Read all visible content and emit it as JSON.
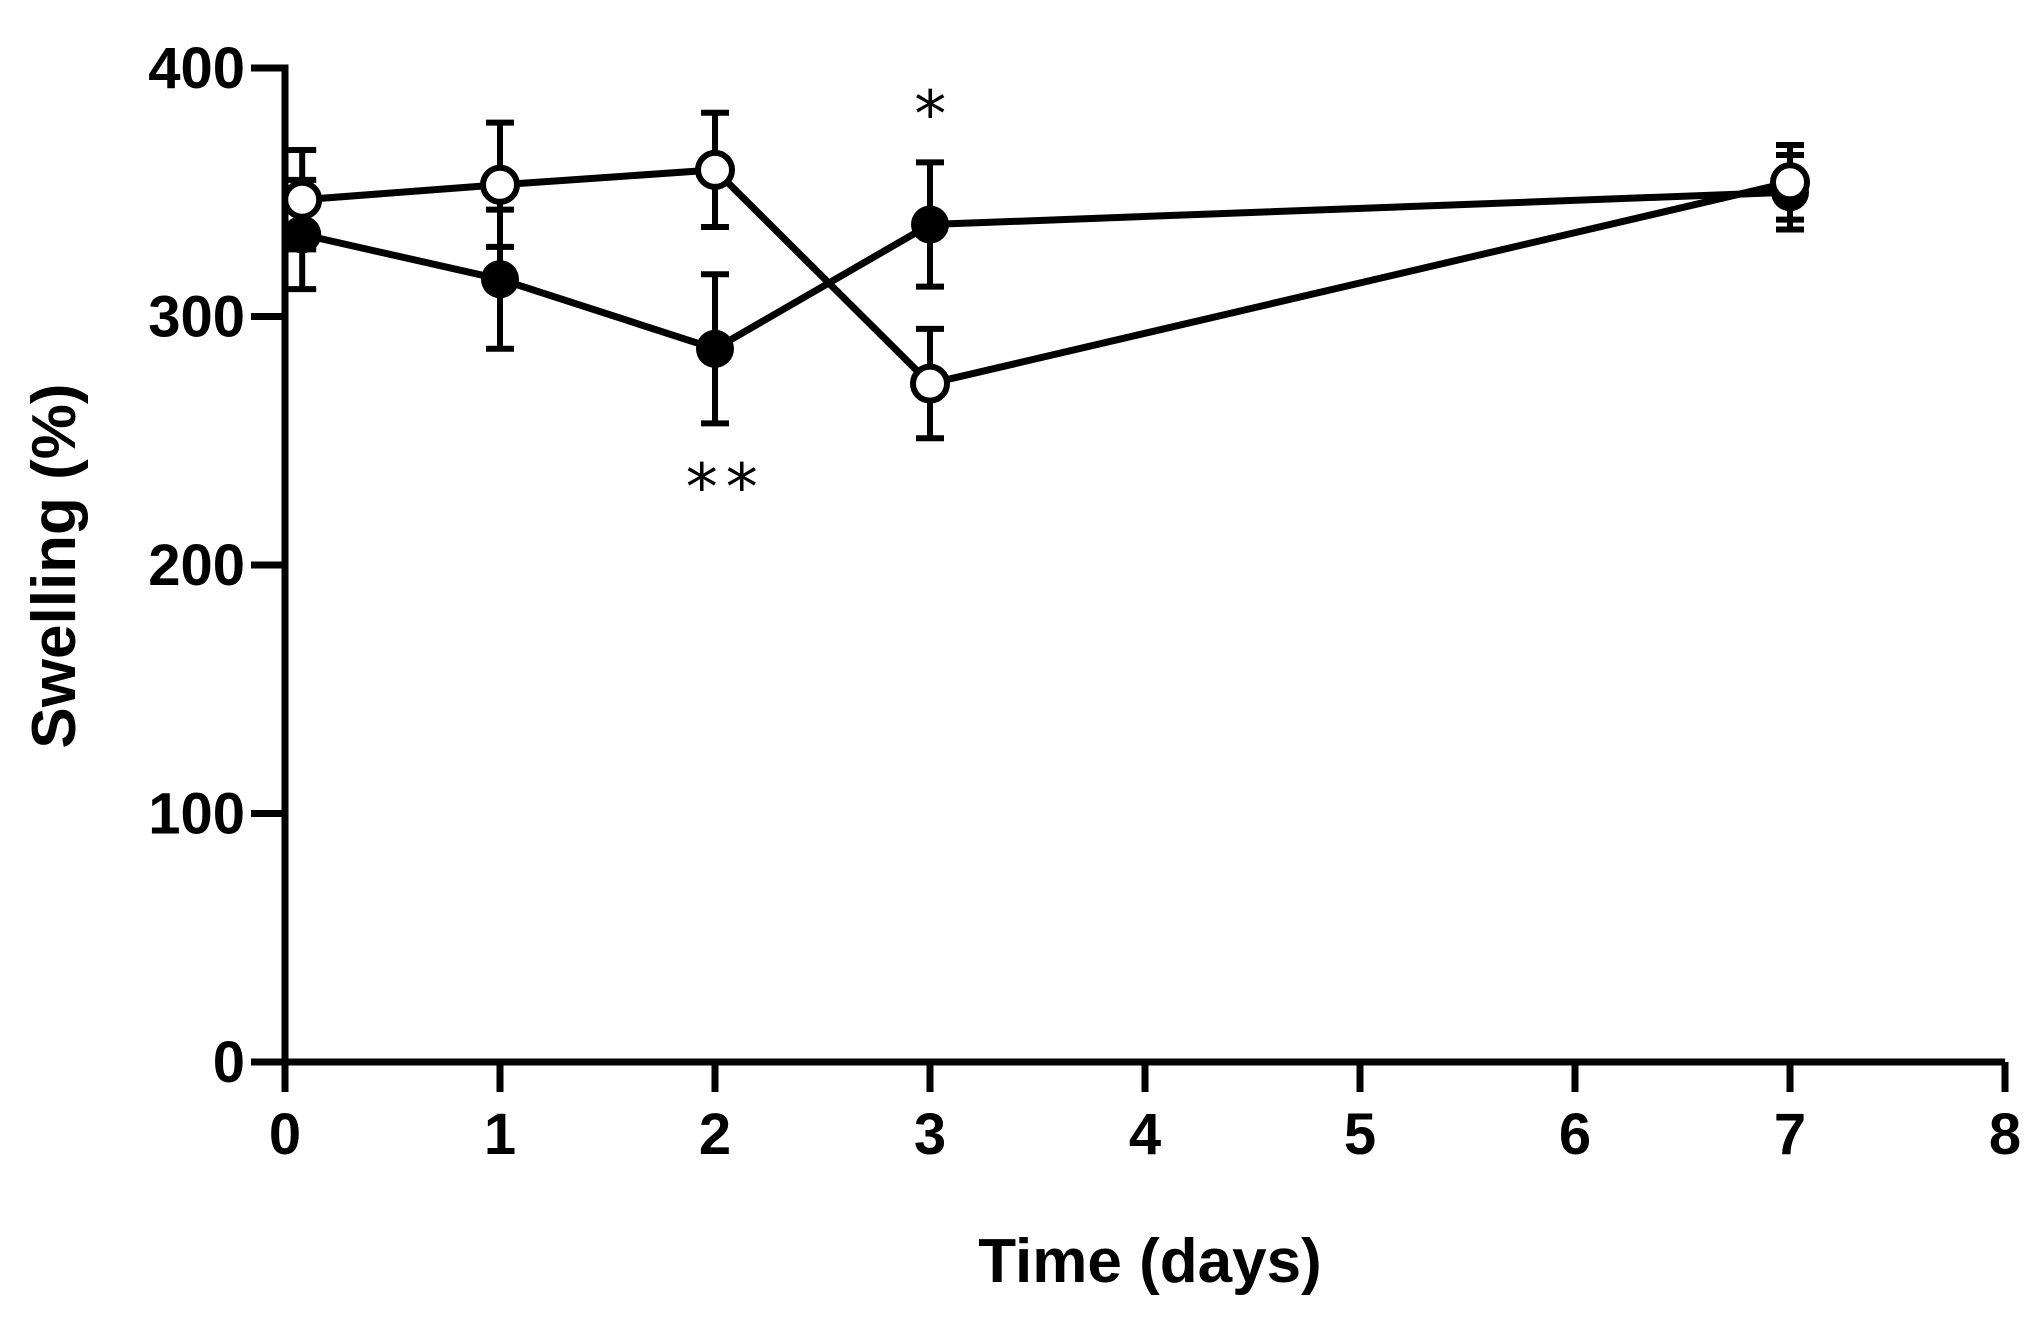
{
  "chart_data": {
    "type": "line",
    "title": "",
    "xlabel": "Time (days)",
    "ylabel": "Swelling (%)",
    "xlim": [
      0,
      8
    ],
    "ylim": [
      0,
      400
    ],
    "xticks": [
      0,
      1,
      2,
      3,
      4,
      5,
      6,
      7,
      8
    ],
    "yticks": [
      0,
      100,
      200,
      300,
      400
    ],
    "grid": false,
    "legend": "none",
    "series": [
      {
        "name": "filled",
        "marker": "filled-circle",
        "color": "#000000",
        "x": [
          0.08,
          1,
          2,
          3,
          7
        ],
        "y": [
          333,
          315,
          287,
          337,
          350
        ],
        "err": [
          22,
          28,
          30,
          25,
          15
        ]
      },
      {
        "name": "open",
        "marker": "open-circle",
        "color": "#000000",
        "x": [
          0.08,
          1,
          2,
          3,
          7
        ],
        "y": [
          347,
          353,
          359,
          273,
          354
        ],
        "err": [
          20,
          25,
          23,
          22,
          15
        ]
      }
    ],
    "annotations": [
      {
        "text": "**",
        "x": 2.05,
        "y": 232
      },
      {
        "text": "*",
        "x": 3.02,
        "y": 382
      }
    ]
  }
}
